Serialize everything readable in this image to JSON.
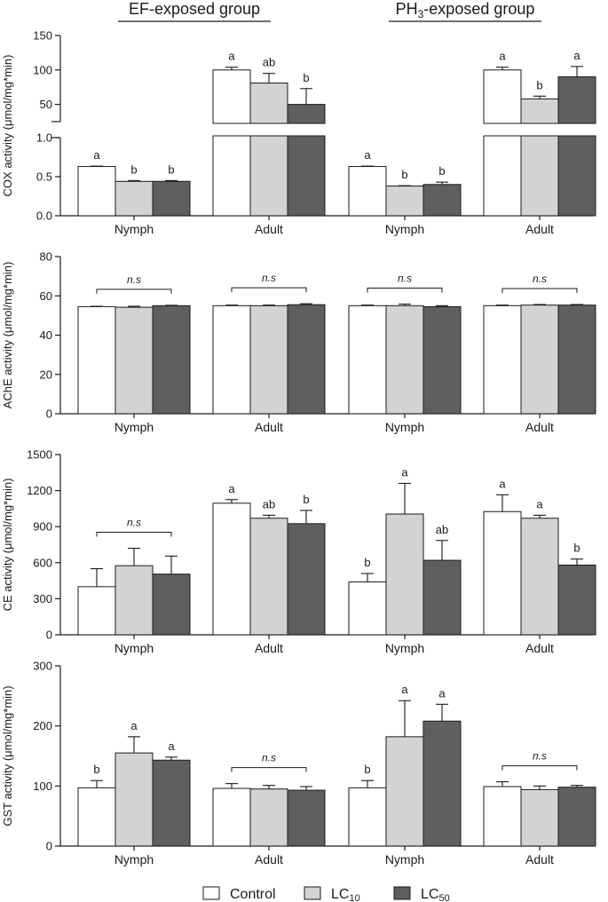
{
  "group_headers": {
    "ef": "EF-exposed group",
    "ph3_prefix": "PH",
    "ph3_sub": "3",
    "ph3_suffix": "-exposed group"
  },
  "legend": [
    {
      "label": "Control",
      "sub": "",
      "color": "#ffffff"
    },
    {
      "label": "LC",
      "sub": "10",
      "color": "#d3d3d3"
    },
    {
      "label": "LC",
      "sub": "50",
      "color": "#5f5f5f"
    }
  ],
  "chart_data": [
    {
      "type": "bar",
      "title": "",
      "ylabel": "COX activity (μmol/mg*min)",
      "ylim_lower": [
        0,
        1.0
      ],
      "ylim_upper": [
        25,
        150
      ],
      "yticks_lower": [
        "0.0",
        "0.5",
        "1.0"
      ],
      "yticks_upper": [
        "50",
        "100",
        "150"
      ],
      "categories": [
        "Nymph",
        "Adult",
        "Nymph",
        "Adult"
      ],
      "series": [
        {
          "name": "Control",
          "values": [
            0.63,
            100,
            0.63,
            100
          ],
          "errors": [
            0.005,
            4,
            0.005,
            4
          ],
          "letters": [
            "a",
            "a",
            "a",
            "a"
          ]
        },
        {
          "name": "LC10",
          "values": [
            0.44,
            81,
            0.38,
            58
          ],
          "errors": [
            0.01,
            14,
            0.005,
            4
          ],
          "letters": [
            "b",
            "ab",
            "b",
            "b"
          ]
        },
        {
          "name": "LC50",
          "values": [
            0.44,
            50,
            0.4,
            90
          ],
          "errors": [
            0.01,
            23,
            0.03,
            15
          ],
          "letters": [
            "b",
            "b",
            "b",
            "a"
          ]
        }
      ],
      "ns": [
        false,
        false,
        false,
        false
      ],
      "ns_label": "n.s"
    },
    {
      "type": "bar",
      "title": "",
      "ylabel": "AChE activity (μmol/mg*min)",
      "ylim": [
        0,
        80
      ],
      "yticks": [
        "0",
        "20",
        "40",
        "60",
        "80"
      ],
      "categories": [
        "Nymph",
        "Adult",
        "Nymph",
        "Adult"
      ],
      "series": [
        {
          "name": "Control",
          "values": [
            54.5,
            55,
            55,
            55
          ],
          "errors": [
            0.2,
            0.3,
            0.3,
            0.3
          ],
          "letters": [
            "",
            "",
            "",
            ""
          ]
        },
        {
          "name": "LC10",
          "values": [
            54.2,
            55,
            55,
            55.3
          ],
          "errors": [
            0.5,
            0.3,
            0.8,
            0.3
          ],
          "letters": [
            "",
            "",
            "",
            ""
          ]
        },
        {
          "name": "LC50",
          "values": [
            55,
            55.5,
            54.5,
            55.3
          ],
          "errors": [
            0.2,
            0.5,
            0.5,
            0.3
          ],
          "letters": [
            "",
            "",
            "",
            ""
          ]
        }
      ],
      "ns": [
        true,
        true,
        true,
        true
      ],
      "ns_label": "n.s"
    },
    {
      "type": "bar",
      "title": "",
      "ylabel": "CE activity (μmol/mg*min)",
      "ylim": [
        0,
        1500
      ],
      "yticks": [
        "0",
        "300",
        "600",
        "900",
        "1200",
        "1500"
      ],
      "categories": [
        "Nymph",
        "Adult",
        "Nymph",
        "Adult"
      ],
      "series": [
        {
          "name": "Control",
          "values": [
            400,
            1095,
            440,
            1025
          ],
          "errors": [
            150,
            30,
            70,
            140
          ],
          "letters": [
            "",
            "a",
            "b",
            "a"
          ]
        },
        {
          "name": "LC10",
          "values": [
            575,
            970,
            1005,
            970
          ],
          "errors": [
            145,
            25,
            255,
            25
          ],
          "letters": [
            "",
            "ab",
            "a",
            "a"
          ]
        },
        {
          "name": "LC50",
          "values": [
            505,
            925,
            620,
            580
          ],
          "errors": [
            150,
            110,
            165,
            50
          ],
          "letters": [
            "",
            "b",
            "ab",
            "b"
          ]
        }
      ],
      "ns": [
        true,
        false,
        false,
        false
      ],
      "ns_label": "n.s"
    },
    {
      "type": "bar",
      "title": "",
      "ylabel": "GST activity (μmol/mg*min)",
      "ylim": [
        0,
        300
      ],
      "yticks": [
        "0",
        "100",
        "200",
        "300"
      ],
      "categories": [
        "Nymph",
        "Adult",
        "Nymph",
        "Adult"
      ],
      "series": [
        {
          "name": "Control",
          "values": [
            97,
            96,
            97,
            99
          ],
          "errors": [
            12,
            8,
            12,
            8
          ],
          "letters": [
            "b",
            "",
            "b",
            ""
          ]
        },
        {
          "name": "LC10",
          "values": [
            155,
            95,
            182,
            94
          ],
          "errors": [
            27,
            6,
            60,
            6
          ],
          "letters": [
            "a",
            "",
            "a",
            ""
          ]
        },
        {
          "name": "LC50",
          "values": [
            143,
            93,
            208,
            98
          ],
          "errors": [
            5,
            6,
            28,
            3
          ],
          "letters": [
            "a",
            "",
            "a",
            ""
          ]
        }
      ],
      "ns": [
        false,
        true,
        false,
        true
      ],
      "ns_label": "n.s"
    }
  ]
}
